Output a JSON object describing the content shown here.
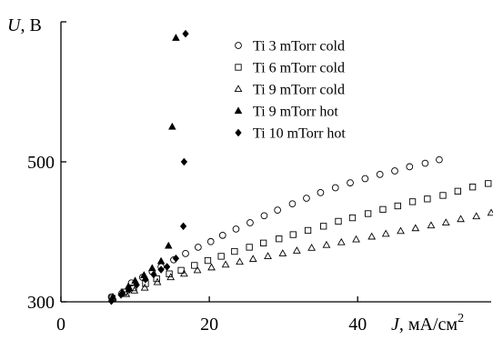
{
  "chart_data": {
    "type": "scatter",
    "title": "",
    "ylabel_var": "U",
    "ylabel_unit": ", В",
    "xlabel_var": "J",
    "xlabel_unit": ", мА/см",
    "xlabel_sup": "2",
    "xlim": [
      0,
      58
    ],
    "ylim": [
      300,
      700
    ],
    "x_ticks": [
      0,
      20,
      40
    ],
    "y_ticks": [
      300,
      500
    ],
    "y_top_tick_value": 700,
    "y_top_tick_label": "",
    "grid": false,
    "legend_position": "top-right",
    "series": [
      {
        "name": "Ti 3 mTorr cold",
        "marker": "circle-open",
        "points": [
          [
            6.8,
            307
          ],
          [
            8.2,
            312
          ],
          [
            9.5,
            327
          ],
          [
            11,
            335
          ],
          [
            12.3,
            343
          ],
          [
            13.5,
            350
          ],
          [
            15.2,
            360
          ],
          [
            16.8,
            369
          ],
          [
            18.5,
            378
          ],
          [
            20.2,
            386
          ],
          [
            21.8,
            395
          ],
          [
            23.6,
            404
          ],
          [
            25.5,
            413
          ],
          [
            27.4,
            423
          ],
          [
            29.2,
            431
          ],
          [
            31.2,
            440
          ],
          [
            33.1,
            448
          ],
          [
            35,
            456
          ],
          [
            37,
            463
          ],
          [
            39,
            470
          ],
          [
            41,
            476
          ],
          [
            43,
            482
          ],
          [
            45,
            487
          ],
          [
            47,
            493
          ],
          [
            49.1,
            498
          ],
          [
            51,
            503
          ]
        ]
      },
      {
        "name": "Ti 6 mTorr cold",
        "marker": "square-open",
        "points": [
          [
            6.9,
            305
          ],
          [
            8.5,
            314
          ],
          [
            9.8,
            320
          ],
          [
            11.4,
            326
          ],
          [
            12.9,
            333
          ],
          [
            14.6,
            340
          ],
          [
            16.2,
            345
          ],
          [
            18,
            352
          ],
          [
            19.8,
            359
          ],
          [
            21.6,
            365
          ],
          [
            23.4,
            372
          ],
          [
            25.4,
            378
          ],
          [
            27.3,
            384
          ],
          [
            29.4,
            390
          ],
          [
            31.3,
            396
          ],
          [
            33.3,
            402
          ],
          [
            35.4,
            408
          ],
          [
            37.4,
            415
          ],
          [
            39.3,
            420
          ],
          [
            41.4,
            426
          ],
          [
            43.4,
            432
          ],
          [
            45.4,
            437
          ],
          [
            47.4,
            443
          ],
          [
            49.4,
            447
          ],
          [
            51.5,
            452
          ],
          [
            53.5,
            458
          ],
          [
            55.5,
            464
          ],
          [
            57.6,
            469
          ]
        ]
      },
      {
        "name": "Ti 9 mTorr cold",
        "marker": "triangle-open",
        "points": [
          [
            7,
            305
          ],
          [
            8.8,
            311
          ],
          [
            9.9,
            316
          ],
          [
            11.3,
            320
          ],
          [
            13,
            328
          ],
          [
            14.8,
            335
          ],
          [
            16.6,
            340
          ],
          [
            18.4,
            345
          ],
          [
            20.3,
            349
          ],
          [
            22.2,
            353
          ],
          [
            24.1,
            357
          ],
          [
            25.9,
            361
          ],
          [
            27.9,
            365
          ],
          [
            29.9,
            369
          ],
          [
            31.8,
            373
          ],
          [
            33.8,
            377
          ],
          [
            35.8,
            381
          ],
          [
            37.8,
            385
          ],
          [
            39.8,
            389
          ],
          [
            41.9,
            393
          ],
          [
            43.8,
            397
          ],
          [
            45.8,
            401
          ],
          [
            47.8,
            405
          ],
          [
            49.9,
            409
          ],
          [
            51.9,
            413
          ],
          [
            53.9,
            418
          ],
          [
            56,
            422
          ],
          [
            58,
            427
          ]
        ]
      },
      {
        "name": "Ti 9 mTorr hot",
        "marker": "triangle-filled",
        "points": [
          [
            7,
            307
          ],
          [
            8.3,
            313
          ],
          [
            9.1,
            322
          ],
          [
            10,
            330
          ],
          [
            11.2,
            338
          ],
          [
            12.3,
            348
          ],
          [
            13.5,
            358
          ],
          [
            14.5,
            380
          ],
          [
            15,
            550
          ],
          [
            15.5,
            677
          ]
        ]
      },
      {
        "name": "Ti 10 mTorr hot",
        "marker": "diamond-filled",
        "points": [
          [
            6.8,
            301
          ],
          [
            8.1,
            310
          ],
          [
            9.2,
            317
          ],
          [
            10.2,
            324
          ],
          [
            11.4,
            332
          ],
          [
            12.5,
            339
          ],
          [
            13.5,
            346
          ],
          [
            14.3,
            350
          ],
          [
            15.5,
            362
          ],
          [
            16.5,
            408
          ],
          [
            16.6,
            500
          ],
          [
            16.8,
            683
          ]
        ]
      }
    ]
  }
}
